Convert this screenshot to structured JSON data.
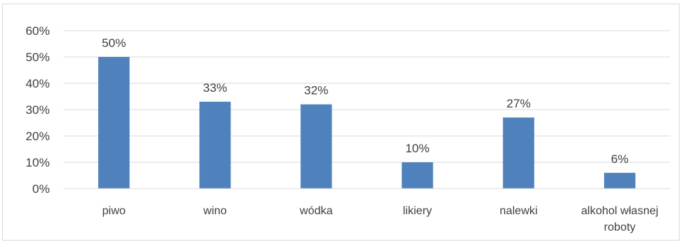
{
  "chart_data": {
    "type": "bar",
    "categories": [
      "piwo",
      "wino",
      "wódka",
      "likiery",
      "nalewki",
      "alkohol własnej roboty"
    ],
    "values": [
      50,
      33,
      32,
      10,
      27,
      6
    ],
    "data_labels": [
      "50%",
      "33%",
      "32%",
      "10%",
      "27%",
      "6%"
    ],
    "title": "",
    "xlabel": "",
    "ylabel": "",
    "ylim": [
      0,
      60
    ],
    "y_ticks": [
      0,
      10,
      20,
      30,
      40,
      50,
      60
    ],
    "y_tick_labels": [
      "0%",
      "10%",
      "20%",
      "30%",
      "40%",
      "50%",
      "60%"
    ],
    "grid": true,
    "legend": "none",
    "colors": {
      "bar": "#4f81bd",
      "grid": "#d9d9d9",
      "text": "#404040"
    }
  }
}
